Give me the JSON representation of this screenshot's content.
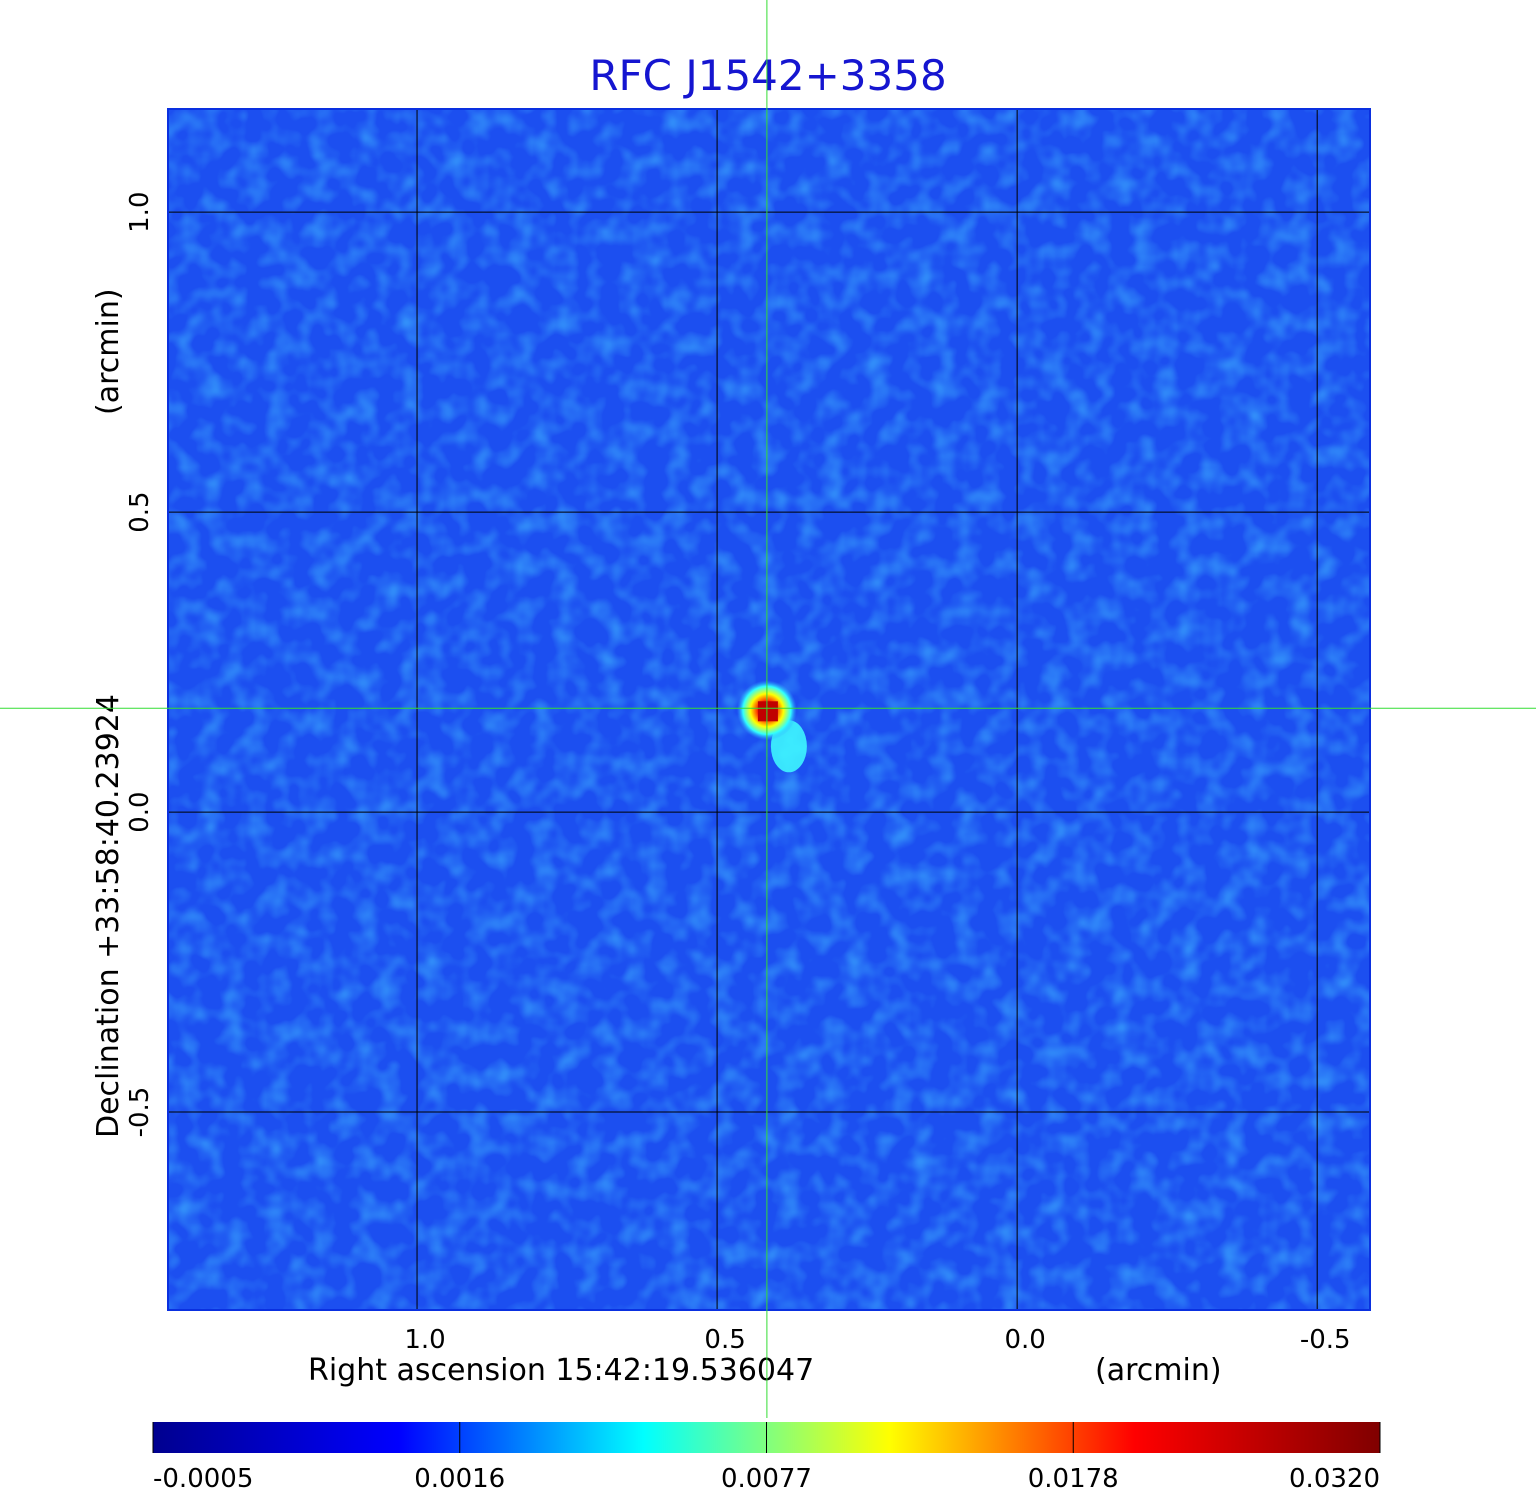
{
  "chart_data": {
    "type": "image",
    "title": "RFC J1542+3358",
    "x_label": "Right ascension  15:42:19.536047",
    "x_unit": "(arcmin)",
    "y_label": "Declination  +33:58:40.23924",
    "y_unit": "(arcmin)",
    "xlim": [
      1.415,
      -0.588
    ],
    "ylim": [
      -0.83,
      1.172
    ],
    "xticks": [
      {
        "value": 1,
        "label": "1.0"
      },
      {
        "value": 0.5,
        "label": "0.5"
      },
      {
        "value": 0,
        "label": "0.0"
      },
      {
        "value": -0.5,
        "label": "-0.5"
      }
    ],
    "yticks": [
      {
        "value": 1,
        "label": "1.0"
      },
      {
        "value": 0.5,
        "label": "0.5"
      },
      {
        "value": 0,
        "label": "0.0"
      },
      {
        "value": -0.5,
        "label": "-0.5"
      }
    ],
    "grid": true,
    "crosshair": {
      "x": 0.417,
      "y": 0.173,
      "color": "#33dd33"
    },
    "colorbar": {
      "ticks": [
        -0.0005,
        0.0016,
        0.0077,
        0.0178,
        {
          "value": 0.032,
          "label": "0.0320"
        }
      ],
      "colors": [
        "#00008f",
        "#0000ff",
        "#00ffff",
        "#ffff00",
        "#ff0000",
        "#800000"
      ]
    }
  }
}
